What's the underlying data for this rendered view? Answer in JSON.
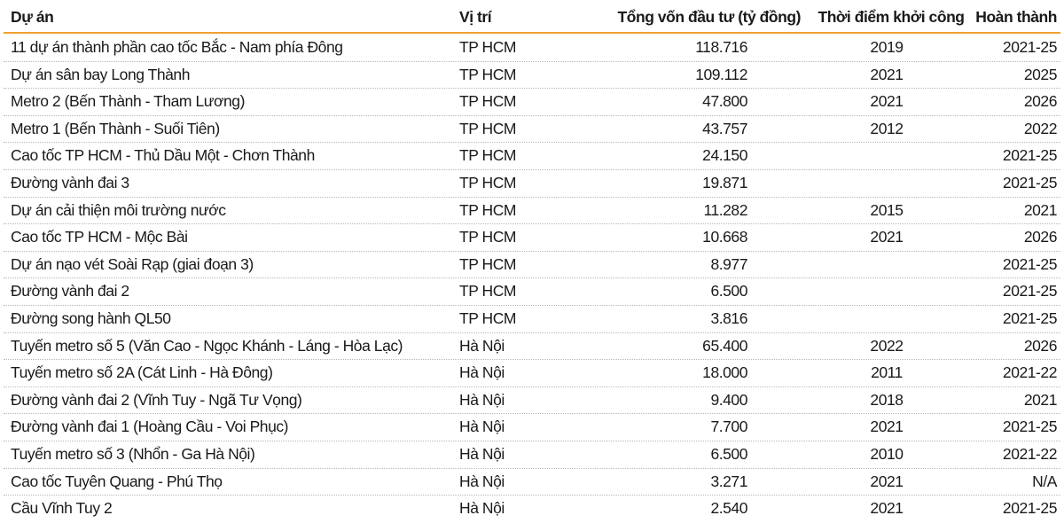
{
  "table": {
    "header": [
      "Dự án",
      "Vị trí",
      "Tổng vốn đầu tư (tỷ đồng)",
      "Thời điểm khởi công",
      "Hoàn thành"
    ],
    "rows": [
      [
        "11 dự án thành phần cao tốc Bắc - Nam phía Đông",
        "TP HCM",
        "118.716",
        "2019",
        "2021-25"
      ],
      [
        "Dự án sân bay Long Thành",
        "TP HCM",
        "109.112",
        "2021",
        "2025"
      ],
      [
        "Metro 2 (Bến Thành - Tham Lương)",
        "TP HCM",
        "47.800",
        "2021",
        "2026"
      ],
      [
        "Metro 1 (Bến Thành - Suối Tiên)",
        "TP HCM",
        "43.757",
        "2012",
        "2022"
      ],
      [
        "Cao tốc TP HCM - Thủ Dầu Một - Chơn Thành",
        "TP HCM",
        "24.150",
        null,
        "2021-25"
      ],
      [
        "Đường vành đai 3",
        "TP HCM",
        "19.871",
        null,
        "2021-25"
      ],
      [
        "Dự án cải thiện môi trường nước",
        "TP HCM",
        "11.282",
        "2015",
        "2021"
      ],
      [
        "Cao tốc TP HCM - Mộc Bài",
        "TP HCM",
        "10.668",
        "2021",
        "2026"
      ],
      [
        "Dự án nạo vét Soài Rạp (giai đoạn 3)",
        "TP HCM",
        "8.977",
        null,
        "2021-25"
      ],
      [
        "Đường vành đai 2",
        "TP HCM",
        "6.500",
        null,
        "2021-25"
      ],
      [
        "Đường song hành QL50",
        "TP HCM",
        "3.816",
        null,
        "2021-25"
      ],
      [
        "Tuyến metro số 5 (Văn Cao - Ngọc Khánh - Láng - Hòa Lạc)",
        "Hà Nội",
        "65.400",
        "2022",
        "2026"
      ],
      [
        "Tuyến metro số 2A (Cát Linh - Hà Đông)",
        "Hà Nội",
        "18.000",
        "2011",
        "2021-22"
      ],
      [
        "Đường vành đai 2 (Vĩnh Tuy - Ngã Tư Vọng)",
        "Hà Nội",
        "9.400",
        "2018",
        "2021"
      ],
      [
        "Đường vành đai 1 (Hoàng Cầu - Voi Phục)",
        "Hà Nội",
        "7.700",
        "2021",
        "2021-25"
      ],
      [
        "Tuyến metro số 3 (Nhổn - Ga Hà Nội)",
        "Hà Nội",
        "6.500",
        "2010",
        "2021-22"
      ],
      [
        "Cao tốc Tuyên Quang - Phú Thọ",
        "Hà Nội",
        "3.271",
        "2021",
        "N/A"
      ],
      [
        "Cầu Vĩnh Tuy 2",
        "Hà Nội",
        "2.540",
        "2021",
        "2021-25"
      ]
    ]
  }
}
